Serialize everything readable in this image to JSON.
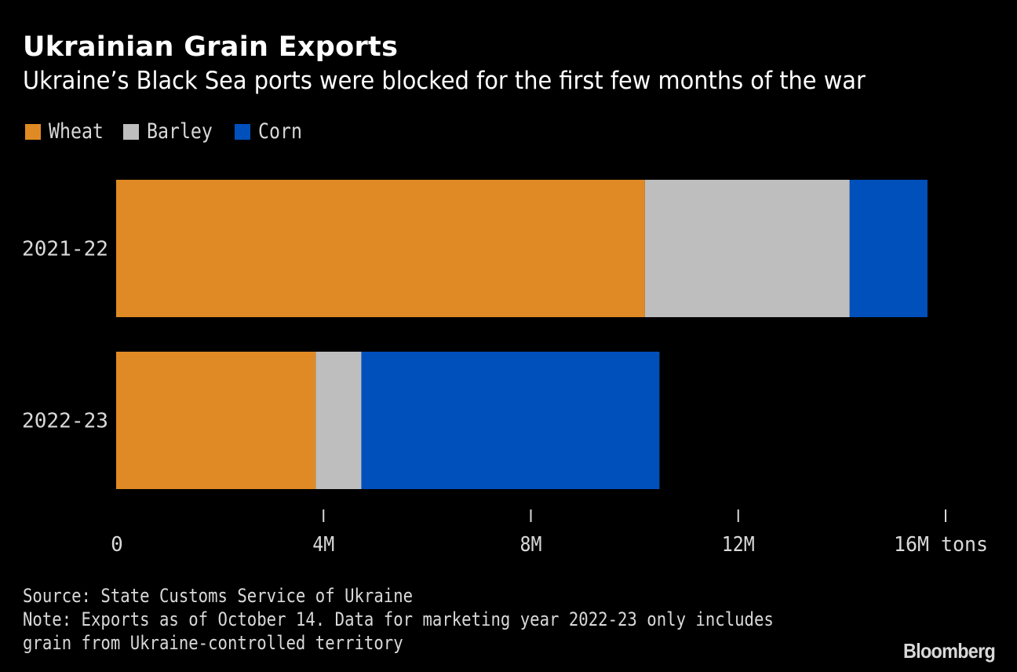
{
  "header": {
    "title": "Ukrainian Grain Exports",
    "subtitle": "Ukraine’s Black Sea ports were blocked for the first few months of the war"
  },
  "footer": {
    "source": "Source: State Customs Service of Ukraine",
    "note_line1": "Note: Exports as of October 14. Data for marketing year 2022-23 only includes",
    "note_line2": "grain from Ukraine-controlled territory",
    "brand": "Bloomberg"
  },
  "colors": {
    "background": "#000000",
    "wheat": "#E08A25",
    "barley": "#BEBEBE",
    "corn": "#0050BC",
    "text": "#D9D9D9",
    "tick": "#D9D9D9"
  },
  "chart_data": {
    "type": "bar",
    "orientation": "horizontal",
    "stacked": true,
    "title": "Ukrainian Grain Exports",
    "subtitle": "Ukraine’s Black Sea ports were blocked for the first few months of the war",
    "categories": [
      "2021-22",
      "2022-23"
    ],
    "series": [
      {
        "name": "Wheat",
        "color": "#E08A25",
        "values": [
          10.2,
          3.85
        ]
      },
      {
        "name": "Barley",
        "color": "#BEBEBE",
        "values": [
          3.95,
          0.88
        ]
      },
      {
        "name": "Corn",
        "color": "#0050BC",
        "values": [
          1.5,
          5.75
        ]
      }
    ],
    "xlabel": "",
    "ylabel": "",
    "unit": "tons",
    "xlim": [
      0,
      16
    ],
    "xticks": [
      0,
      4,
      8,
      12,
      16
    ],
    "xtick_labels": [
      "0",
      "4M",
      "8M",
      "12M",
      "16M tons"
    ],
    "grid": false,
    "legend": {
      "placement": "top-left",
      "entries": [
        "Wheat",
        "Barley",
        "Corn"
      ]
    }
  }
}
